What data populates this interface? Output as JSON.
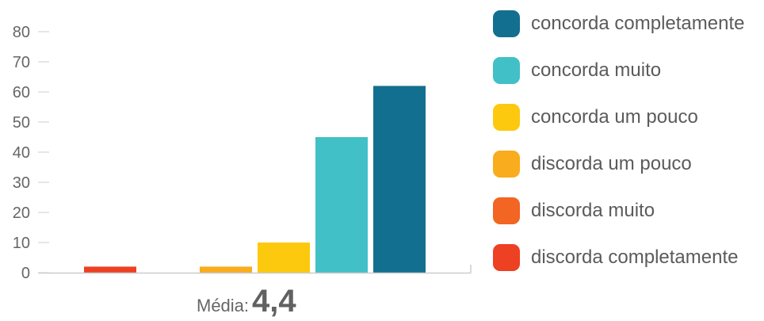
{
  "chart_data": {
    "type": "bar",
    "categories": [
      "discorda completamente",
      "discorda muito",
      "discorda um pouco",
      "concorda um pouco",
      "concorda muito",
      "concorda completamente"
    ],
    "values": [
      2,
      0,
      2,
      10,
      45,
      62
    ],
    "colors": [
      "#ee4023",
      "#f26522",
      "#f9ac1d",
      "#fdc90e",
      "#41c0c7",
      "#136f8f"
    ],
    "ylim": [
      0,
      80
    ],
    "yticks": [
      "0",
      "10",
      "20",
      "30",
      "40",
      "50",
      "60",
      "70",
      "80"
    ],
    "grid": false,
    "legend_position": "right",
    "legend": [
      {
        "label": "concorda completamente",
        "color": "#136f8f"
      },
      {
        "label": "concorda muito",
        "color": "#41c0c7"
      },
      {
        "label": "concorda um pouco",
        "color": "#fdc90e"
      },
      {
        "label": "discorda um pouco",
        "color": "#f9ac1d"
      },
      {
        "label": "discorda muito",
        "color": "#f26522"
      },
      {
        "label": "discorda completamente",
        "color": "#ee4023"
      }
    ]
  },
  "average": {
    "label": "Média:",
    "value": "4,4"
  }
}
